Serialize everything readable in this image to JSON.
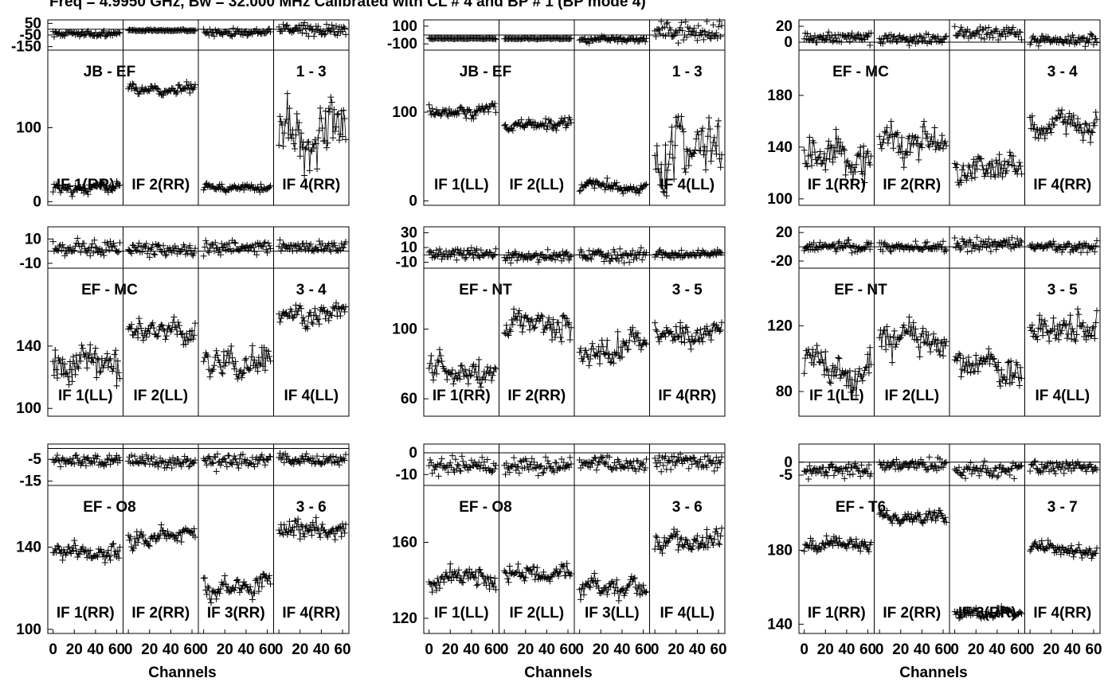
{
  "header": "Freq = 4.9950 GHz, Bw = 32.000 MHz Calibrated with CL # 4 and BP # 1 (BP mode 4)",
  "x_axis_label": "Channels",
  "x_tick_labels": [
    "0",
    "20",
    "40",
    "60"
  ],
  "chart_data": [
    {
      "type": "line",
      "baseline": "JB - EF",
      "pair": "1 - 3",
      "phase": {
        "ticks": [
          50,
          -50,
          -150
        ],
        "ylim": [
          -180,
          80
        ]
      },
      "amp": {
        "ticks": [
          100,
          0
        ],
        "ylim": [
          -5,
          205
        ]
      },
      "ifs": [
        {
          "label": "IF 1(RR)",
          "amp_level": 20,
          "amp_spread": 8,
          "phase_level": -40,
          "phase_spread": 20
        },
        {
          "label": "IF 2(RR)",
          "amp_level": 150,
          "amp_spread": 8,
          "phase_level": -10,
          "phase_spread": 6
        },
        {
          "label": "",
          "amp_level": 18,
          "amp_spread": 6,
          "phase_level": -25,
          "phase_spread": 25
        },
        {
          "label": "IF 4(RR)",
          "amp_level": 95,
          "amp_spread": 45,
          "phase_level": -5,
          "phase_spread": 40
        }
      ]
    },
    {
      "type": "line",
      "baseline": "JB - EF",
      "pair": "1 - 3",
      "phase": {
        "ticks": [
          100,
          -100
        ],
        "ylim": [
          -170,
          170
        ]
      },
      "amp": {
        "ticks": [
          100,
          0
        ],
        "ylim": [
          -5,
          170
        ]
      },
      "ifs": [
        {
          "label": "IF 1(LL)",
          "amp_level": 100,
          "amp_spread": 8,
          "phase_level": -40,
          "phase_spread": 6
        },
        {
          "label": "IF 2(LL)",
          "amp_level": 85,
          "amp_spread": 8,
          "phase_level": -40,
          "phase_spread": 6
        },
        {
          "label": "",
          "amp_level": 15,
          "amp_spread": 7,
          "phase_level": -50,
          "phase_spread": 25
        },
        {
          "label": "IF 4(LL)",
          "amp_level": 50,
          "amp_spread": 40,
          "phase_level": 40,
          "phase_spread": 90
        }
      ]
    },
    {
      "type": "line",
      "baseline": "EF - MC",
      "pair": "3 - 4",
      "phase": {
        "ticks": [
          20,
          0
        ],
        "ylim": [
          -10,
          28
        ]
      },
      "amp": {
        "ticks": [
          180,
          140,
          100
        ],
        "ylim": [
          95,
          215
        ]
      },
      "ifs": [
        {
          "label": "IF 1(RR)",
          "amp_level": 132,
          "amp_spread": 15,
          "phase_level": 6,
          "phase_spread": 6
        },
        {
          "label": "IF 2(RR)",
          "amp_level": 142,
          "amp_spread": 13,
          "phase_level": 4,
          "phase_spread": 5
        },
        {
          "label": "",
          "amp_level": 125,
          "amp_spread": 15,
          "phase_level": 12,
          "phase_spread": 6
        },
        {
          "label": "IF 4(RR)",
          "amp_level": 155,
          "amp_spread": 12,
          "phase_level": 3,
          "phase_spread": 5
        }
      ]
    },
    {
      "type": "line",
      "baseline": "EF - MC",
      "pair": "3 - 4",
      "phase": {
        "ticks": [
          10,
          -10
        ],
        "ylim": [
          -14,
          20
        ]
      },
      "amp": {
        "ticks": [
          140,
          100
        ],
        "ylim": [
          95,
          190
        ]
      },
      "ifs": [
        {
          "label": "IF 1(LL)",
          "amp_level": 130,
          "amp_spread": 14,
          "phase_level": 2,
          "phase_spread": 5
        },
        {
          "label": "IF 2(LL)",
          "amp_level": 148,
          "amp_spread": 8,
          "phase_level": 1,
          "phase_spread": 4
        },
        {
          "label": "",
          "amp_level": 130,
          "amp_spread": 10,
          "phase_level": 3,
          "phase_spread": 4
        },
        {
          "label": "IF 4(LL)",
          "amp_level": 160,
          "amp_spread": 8,
          "phase_level": 3,
          "phase_spread": 4
        }
      ]
    },
    {
      "type": "line",
      "baseline": "EF - NT",
      "pair": "3 - 5",
      "phase": {
        "ticks": [
          30,
          10,
          -10
        ],
        "ylim": [
          -18,
          38
        ]
      },
      "amp": {
        "ticks": [
          100,
          60
        ],
        "ylim": [
          50,
          135
        ]
      },
      "ifs": [
        {
          "label": "IF 1(RR)",
          "amp_level": 75,
          "amp_spread": 8,
          "phase_level": 1,
          "phase_spread": 6
        },
        {
          "label": "IF 2(RR)",
          "amp_level": 103,
          "amp_spread": 8,
          "phase_level": -2,
          "phase_spread": 5
        },
        {
          "label": "",
          "amp_level": 90,
          "amp_spread": 10,
          "phase_level": -1,
          "phase_spread": 7
        },
        {
          "label": "IF 4(RR)",
          "amp_level": 100,
          "amp_spread": 8,
          "phase_level": 1,
          "phase_spread": 4
        }
      ]
    },
    {
      "type": "line",
      "baseline": "EF - NT",
      "pair": "3 - 5",
      "phase": {
        "ticks": [
          20,
          -20
        ],
        "ylim": [
          -30,
          28
        ]
      },
      "amp": {
        "ticks": [
          120,
          80
        ],
        "ylim": [
          65,
          155
        ]
      },
      "ifs": [
        {
          "label": "IF 1(LL)",
          "amp_level": 95,
          "amp_spread": 12,
          "phase_level": 0,
          "phase_spread": 6
        },
        {
          "label": "IF 2(LL)",
          "amp_level": 110,
          "amp_spread": 10,
          "phase_level": 0,
          "phase_spread": 5
        },
        {
          "label": "",
          "amp_level": 95,
          "amp_spread": 12,
          "phase_level": 4,
          "phase_spread": 7
        },
        {
          "label": "IF 4(LL)",
          "amp_level": 118,
          "amp_spread": 10,
          "phase_level": 0,
          "phase_spread": 6
        }
      ]
    },
    {
      "type": "line",
      "baseline": "EF - O8",
      "pair": "3 - 6",
      "phase": {
        "ticks": [
          -5,
          -15
        ],
        "ylim": [
          -17,
          2
        ]
      },
      "amp": {
        "ticks": [
          140,
          100
        ],
        "ylim": [
          98,
          170
        ]
      },
      "ifs": [
        {
          "label": "IF 1(RR)",
          "amp_level": 137,
          "amp_spread": 5,
          "phase_level": -6,
          "phase_spread": 2
        },
        {
          "label": "IF 2(RR)",
          "amp_level": 145,
          "amp_spread": 5,
          "phase_level": -6,
          "phase_spread": 2
        },
        {
          "label": "IF 3(RR)",
          "amp_level": 122,
          "amp_spread": 6,
          "phase_level": -6,
          "phase_spread": 3
        },
        {
          "label": "IF 4(RR)",
          "amp_level": 148,
          "amp_spread": 5,
          "phase_level": -5,
          "phase_spread": 2
        }
      ]
    },
    {
      "type": "line",
      "baseline": "EF - O8",
      "pair": "3 - 6",
      "phase": {
        "ticks": [
          0,
          -10
        ],
        "ylim": [
          -15,
          4
        ]
      },
      "amp": {
        "ticks": [
          160,
          120
        ],
        "ylim": [
          112,
          190
        ]
      },
      "ifs": [
        {
          "label": "IF 1(LL)",
          "amp_level": 140,
          "amp_spread": 6,
          "phase_level": -6,
          "phase_spread": 3
        },
        {
          "label": "IF 2(LL)",
          "amp_level": 143,
          "amp_spread": 5,
          "phase_level": -6,
          "phase_spread": 3
        },
        {
          "label": "IF 3(LL)",
          "amp_level": 135,
          "amp_spread": 6,
          "phase_level": -5,
          "phase_spread": 3
        },
        {
          "label": "IF 4(LL)",
          "amp_level": 160,
          "amp_spread": 6,
          "phase_level": -4,
          "phase_spread": 3
        }
      ]
    },
    {
      "type": "line",
      "baseline": "EF - T6",
      "pair": "3 - 7",
      "phase": {
        "ticks": [
          0,
          -5
        ],
        "ylim": [
          -9,
          7
        ]
      },
      "amp": {
        "ticks": [
          180,
          140
        ],
        "ylim": [
          135,
          215
        ]
      },
      "ifs": [
        {
          "label": "IF 1(RR)",
          "amp_level": 183,
          "amp_spread": 4,
          "phase_level": -3,
          "phase_spread": 2
        },
        {
          "label": "IF 2(RR)",
          "amp_level": 197,
          "amp_spread": 4,
          "phase_level": -1,
          "phase_spread": 2
        },
        {
          "label": "IF 3(RR)",
          "amp_level": 146,
          "amp_spread": 3,
          "phase_level": -3,
          "phase_spread": 2
        },
        {
          "label": "IF 4(RR)",
          "amp_level": 180,
          "amp_spread": 4,
          "phase_level": -2,
          "phase_spread": 2
        }
      ]
    }
  ]
}
